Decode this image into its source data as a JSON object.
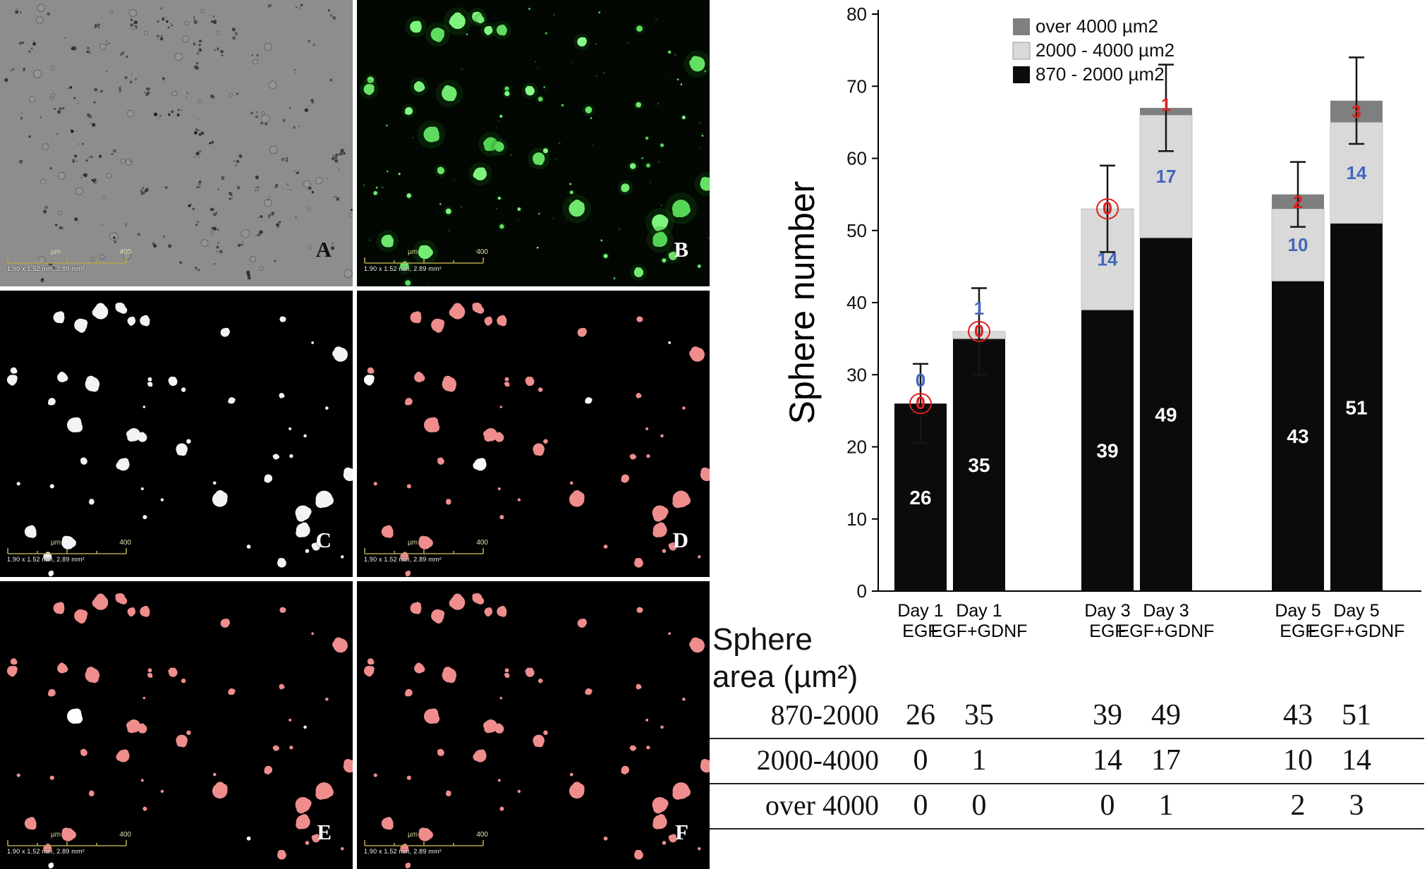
{
  "figure": {
    "panel_letters": [
      "A",
      "B",
      "C",
      "D",
      "E",
      "F"
    ],
    "scalebar": {
      "unit": "µm",
      "length_label": "400",
      "caption": "1.90 x 1.52 mm, 2.89 mm²"
    },
    "colors": {
      "phase_background": "#8d8d8d",
      "fluorescence_green": "#4ae04a",
      "mask_white": "#f3f3f3",
      "mask_pink": "#ef8d8d"
    }
  },
  "chart_data": {
    "type": "bar",
    "stacked": true,
    "title": "",
    "xlabel": "",
    "ylabel": "Sphere number",
    "ylim": [
      0,
      80
    ],
    "yticks": [
      0,
      10,
      20,
      30,
      40,
      50,
      60,
      70,
      80
    ],
    "grid": false,
    "legend_position": "top-left-inside",
    "categories": [
      "Day 1 EGF",
      "Day 1 EGF+GDNF",
      "Day 3 EGF",
      "Day 3 EGF+GDNF",
      "Day 5 EGF",
      "Day 5 EGF+GDNF"
    ],
    "category_line1": [
      "Day 1",
      "Day 1",
      "Day 3",
      "Day 3",
      "Day 5",
      "Day 5"
    ],
    "category_line2": [
      "EGF",
      "EGF+GDNF",
      "EGF",
      "EGF+GDNF",
      "EGF",
      "EGF+GDNF"
    ],
    "series": [
      {
        "name": "870 - 2000 µm2",
        "color": "#0b0b0b",
        "label_color": "#ffffff",
        "values": [
          26,
          35,
          39,
          49,
          43,
          51
        ]
      },
      {
        "name": "2000 - 4000 µm2",
        "color": "#d9d9d9",
        "label_color": "#4466bb",
        "values": [
          0,
          1,
          14,
          17,
          10,
          14
        ]
      },
      {
        "name": "over 4000 µm2",
        "color": "#7f7f7f",
        "label_color": "#e02020",
        "values": [
          0,
          0,
          0,
          1,
          2,
          3
        ]
      }
    ],
    "totals": [
      26,
      36,
      53,
      67,
      55,
      68
    ],
    "error_bars": [
      5.5,
      6,
      6,
      6,
      4.5,
      6
    ],
    "red_zero_circled_bars": [
      0,
      1,
      2
    ]
  },
  "table": {
    "title_line1": "Sphere",
    "title_line2": "area (µm²)",
    "rows": [
      {
        "label": "870-2000",
        "values": [
          26,
          35,
          39,
          49,
          43,
          51
        ]
      },
      {
        "label": "2000-4000",
        "values": [
          0,
          1,
          14,
          17,
          10,
          14
        ]
      },
      {
        "label": "over 4000",
        "values": [
          0,
          0,
          0,
          1,
          2,
          3
        ]
      }
    ]
  }
}
